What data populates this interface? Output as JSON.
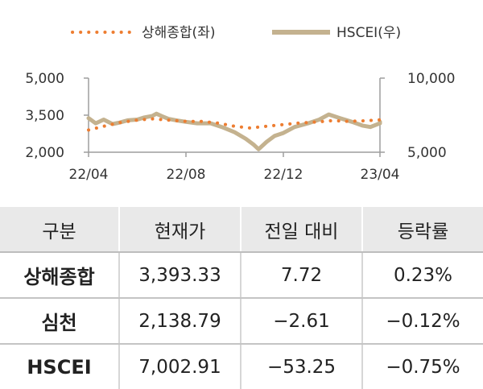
{
  "chart_data": {
    "type": "line",
    "x_ticks": [
      "22/04",
      "22/08",
      "22/12",
      "23/04"
    ],
    "x_range": [
      "2022-04-01",
      "2023-04-30"
    ],
    "y_left": {
      "ticks": [
        "5,000",
        "3,500",
        "2,000"
      ],
      "tick_values": [
        5000,
        3500,
        2000
      ],
      "range": [
        2000,
        5000
      ]
    },
    "y_right": {
      "ticks": [
        "10,000",
        "5,000"
      ],
      "tick_values": [
        10000,
        5000
      ],
      "range": [
        5000,
        10000
      ]
    },
    "grid": false,
    "legend_position": "top",
    "series": [
      {
        "name": "상해종합(좌)",
        "axis": "left",
        "style": "dotted",
        "color": "#ED7D31",
        "points": [
          [
            "2022-04-01",
            2900
          ],
          [
            "2022-04-20",
            3050
          ],
          [
            "2022-05-10",
            3200
          ],
          [
            "2022-06-01",
            3300
          ],
          [
            "2022-06-20",
            3350
          ],
          [
            "2022-07-10",
            3300
          ],
          [
            "2022-08-01",
            3250
          ],
          [
            "2022-08-20",
            3250
          ],
          [
            "2022-09-10",
            3180
          ],
          [
            "2022-10-01",
            3050
          ],
          [
            "2022-10-20",
            2980
          ],
          [
            "2022-11-10",
            3050
          ],
          [
            "2022-12-01",
            3120
          ],
          [
            "2022-12-20",
            3180
          ],
          [
            "2023-01-10",
            3220
          ],
          [
            "2023-02-01",
            3280
          ],
          [
            "2023-02-20",
            3250
          ],
          [
            "2023-03-10",
            3270
          ],
          [
            "2023-04-01",
            3310
          ],
          [
            "2023-04-20",
            3393
          ]
        ]
      },
      {
        "name": "HSCEI(우)",
        "axis": "right",
        "style": "solid",
        "color": "#C4B28F",
        "points": [
          [
            "2022-04-01",
            7300
          ],
          [
            "2022-04-10",
            6950
          ],
          [
            "2022-04-20",
            7200
          ],
          [
            "2022-05-01",
            6900
          ],
          [
            "2022-05-10",
            7000
          ],
          [
            "2022-05-20",
            7150
          ],
          [
            "2022-06-01",
            7200
          ],
          [
            "2022-06-10",
            7350
          ],
          [
            "2022-06-20",
            7450
          ],
          [
            "2022-06-25",
            7600
          ],
          [
            "2022-07-01",
            7450
          ],
          [
            "2022-07-10",
            7250
          ],
          [
            "2022-07-20",
            7150
          ],
          [
            "2022-08-01",
            7050
          ],
          [
            "2022-08-15",
            6950
          ],
          [
            "2022-09-01",
            6950
          ],
          [
            "2022-09-15",
            6700
          ],
          [
            "2022-10-01",
            6350
          ],
          [
            "2022-10-15",
            5900
          ],
          [
            "2022-10-25",
            5500
          ],
          [
            "2022-10-31",
            5200
          ],
          [
            "2022-11-10",
            5700
          ],
          [
            "2022-11-20",
            6100
          ],
          [
            "2022-12-01",
            6300
          ],
          [
            "2022-12-15",
            6700
          ],
          [
            "2023-01-01",
            6950
          ],
          [
            "2023-01-15",
            7200
          ],
          [
            "2023-01-27",
            7550
          ],
          [
            "2023-02-10",
            7300
          ],
          [
            "2023-02-25",
            7050
          ],
          [
            "2023-03-10",
            6800
          ],
          [
            "2023-03-20",
            6700
          ],
          [
            "2023-04-01",
            6950
          ],
          [
            "2023-04-15",
            7050
          ],
          [
            "2023-04-25",
            7003
          ]
        ]
      }
    ]
  },
  "table": {
    "headers": [
      "구분",
      "현재가",
      "전일 대비",
      "등락률"
    ],
    "rows": [
      [
        "상해종합",
        "3,393.33",
        "7.72",
        "0.23%"
      ],
      [
        "심천",
        "2,138.79",
        "−2.61",
        "−0.12%"
      ],
      [
        "HSCEI",
        "7,002.91",
        "−53.25",
        "−0.75%"
      ]
    ]
  }
}
